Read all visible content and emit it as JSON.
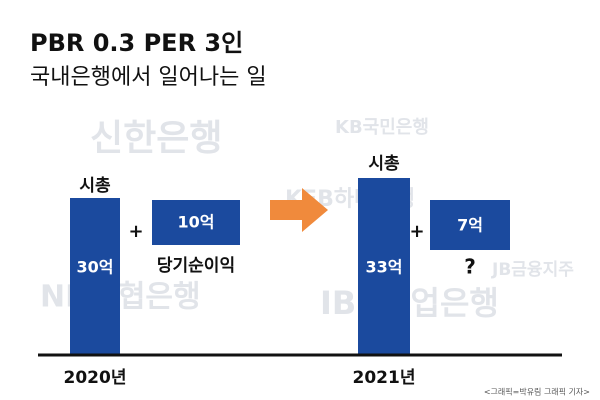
{
  "header": {
    "title": "PBR 0.3 PER 3인",
    "subtitle": "국내은행에서 일어나는 일"
  },
  "panels": [
    {
      "year": "2020년",
      "market_cap_label": "시총",
      "market_cap": "30억",
      "plus": "+",
      "net_income": "10억",
      "net_income_label": "당기순이익"
    },
    {
      "year": "2021년",
      "market_cap_label": "시총",
      "market_cap": "33억",
      "plus": "+",
      "net_income": "7억",
      "net_income_label": "?"
    }
  ],
  "watermarks": [
    "신한은행",
    "KB국민은행",
    "KEB하나은행",
    "JB금융지주",
    "NH농협은행",
    "IBK기업은행"
  ],
  "credit": "<그래픽=박유림 그래픽 기자>"
}
